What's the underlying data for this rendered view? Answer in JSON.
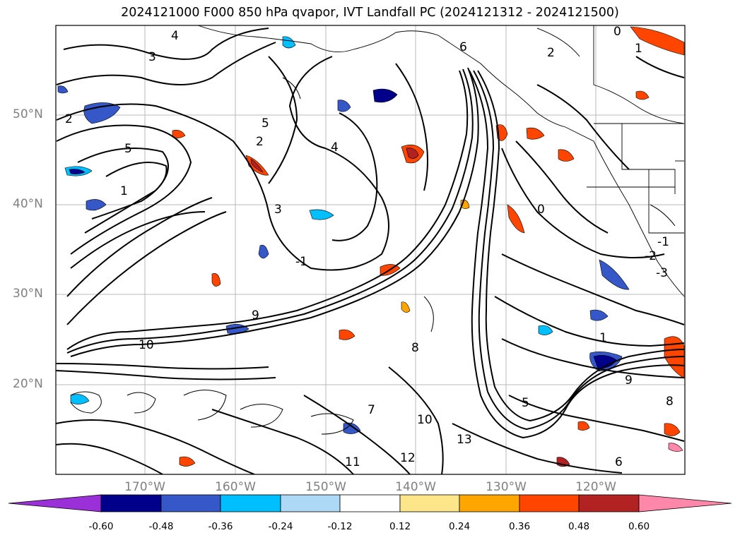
{
  "title": "2024121000 F000 850 hPa qvapor, IVT Landfall PC (2024121312 - 2024121500)",
  "map": {
    "lat_labels": [
      "50°N",
      "40°N",
      "30°N",
      "20°N"
    ],
    "lon_labels": [
      "170°W",
      "160°W",
      "150°W",
      "140°W",
      "130°W",
      "120°W"
    ],
    "contour_labels": [
      "3",
      "4",
      "5",
      "6",
      "2",
      "1",
      "5",
      "4",
      "3",
      "2",
      "1",
      "0",
      "-1",
      "9",
      "10",
      "11",
      "12",
      "13",
      "7",
      "8",
      "6",
      "5",
      "9",
      "10",
      "-1",
      "-2",
      "-3",
      "0",
      "1",
      "2",
      "8"
    ]
  },
  "colorbar": {
    "extend": "both",
    "colors": [
      "#9b30d9",
      "#00008b",
      "#3557c8",
      "#00bfff",
      "#add8f6",
      "#ffffff",
      "#fde68a",
      "#ffa500",
      "#ff4500",
      "#b22222",
      "#ff88aa"
    ],
    "ticks": [
      "-0.60",
      "-0.48",
      "-0.36",
      "-0.24",
      "-0.12",
      "0.12",
      "0.24",
      "0.36",
      "0.48",
      "0.60"
    ]
  }
}
